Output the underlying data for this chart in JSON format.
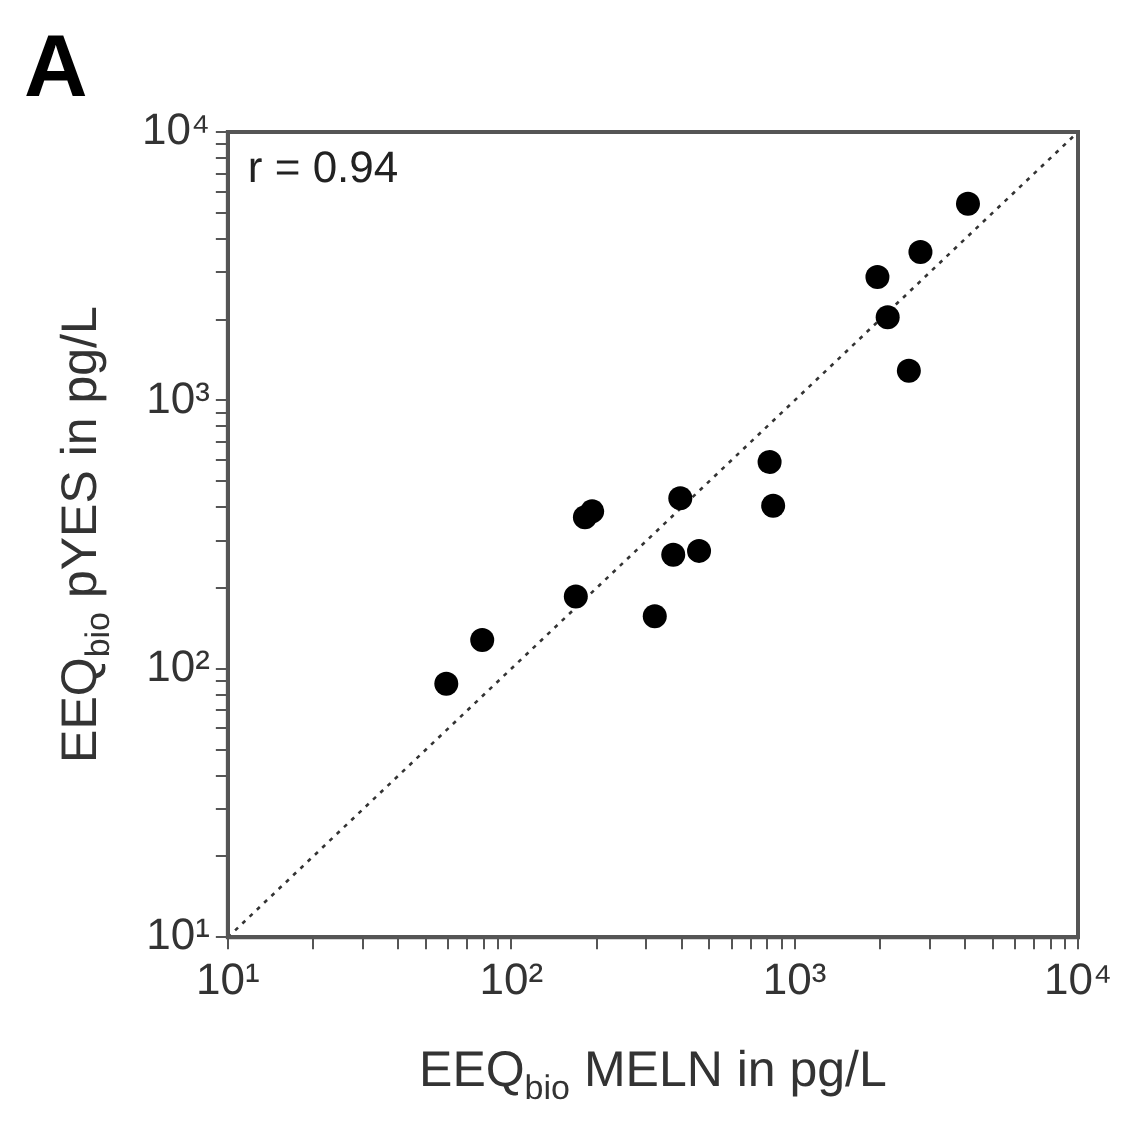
{
  "chart_data": {
    "type": "scatter",
    "title": "A",
    "xlabel": "EEQ$_{bio}$ MELN in pg/L",
    "ylabel": "EEQ$_{bio}$ pYES in pg/L",
    "annotations": [
      "r = 0.94"
    ],
    "log": "xy",
    "grid": false,
    "legend": false,
    "marker": "circle",
    "xlim": [
      10,
      10000
    ],
    "ylim": [
      10,
      10000
    ],
    "xticks": [
      {
        "value": 10,
        "label": "10¹"
      },
      {
        "value": 20,
        "label": null
      },
      {
        "value": 30,
        "label": null
      },
      {
        "value": 40,
        "label": null
      },
      {
        "value": 50,
        "label": null
      },
      {
        "value": 60,
        "label": null
      },
      {
        "value": 70,
        "label": null
      },
      {
        "value": 80,
        "label": null
      },
      {
        "value": 90,
        "label": null
      },
      {
        "value": 100,
        "label": "10²"
      },
      {
        "value": 200,
        "label": null
      },
      {
        "value": 300,
        "label": null
      },
      {
        "value": 400,
        "label": null
      },
      {
        "value": 500,
        "label": null
      },
      {
        "value": 600,
        "label": null
      },
      {
        "value": 700,
        "label": null
      },
      {
        "value": 800,
        "label": null
      },
      {
        "value": 900,
        "label": null
      },
      {
        "value": 1000,
        "label": "10³"
      },
      {
        "value": 2000,
        "label": null
      },
      {
        "value": 3000,
        "label": null
      },
      {
        "value": 4000,
        "label": null
      },
      {
        "value": 5000,
        "label": null
      },
      {
        "value": 6000,
        "label": null
      },
      {
        "value": 7000,
        "label": null
      },
      {
        "value": 8000,
        "label": null
      },
      {
        "value": 9000,
        "label": null
      },
      {
        "value": 10000,
        "label": "10⁴"
      }
    ],
    "yticks": [
      {
        "value": 10,
        "label": "10¹"
      },
      {
        "value": 20,
        "label": null
      },
      {
        "value": 30,
        "label": null
      },
      {
        "value": 40,
        "label": null
      },
      {
        "value": 50,
        "label": null
      },
      {
        "value": 60,
        "label": null
      },
      {
        "value": 70,
        "label": null
      },
      {
        "value": 80,
        "label": null
      },
      {
        "value": 90,
        "label": null
      },
      {
        "value": 100,
        "label": "10²"
      },
      {
        "value": 200,
        "label": null
      },
      {
        "value": 300,
        "label": null
      },
      {
        "value": 400,
        "label": null
      },
      {
        "value": 500,
        "label": null
      },
      {
        "value": 600,
        "label": null
      },
      {
        "value": 700,
        "label": null
      },
      {
        "value": 800,
        "label": null
      },
      {
        "value": 900,
        "label": null
      },
      {
        "value": 1000,
        "label": "10³"
      },
      {
        "value": 2000,
        "label": null
      },
      {
        "value": 3000,
        "label": null
      },
      {
        "value": 4000,
        "label": null
      },
      {
        "value": 5000,
        "label": null
      },
      {
        "value": 6000,
        "label": null
      },
      {
        "value": 7000,
        "label": null
      },
      {
        "value": 8000,
        "label": null
      },
      {
        "value": 9000,
        "label": null
      },
      {
        "value": 10000,
        "label": "10⁴"
      }
    ],
    "series": [
      {
        "color": "#000000",
        "x": [
          59,
          79,
          169,
          182,
          193,
          321,
          373,
          395,
          460,
          816,
          840,
          1960,
          2130,
          2530,
          2780,
          4090
        ],
        "values": [
          88,
          128,
          186,
          367,
          386,
          157,
          266,
          432,
          275,
          590,
          405,
          2880,
          2040,
          1290,
          3570,
          5400
        ]
      },
      {
        "type": "line",
        "color": "#333333",
        "line_style": "dotted",
        "marker": "none",
        "x": [
          10,
          10000
        ],
        "values": [
          10,
          10000
        ]
      }
    ]
  }
}
